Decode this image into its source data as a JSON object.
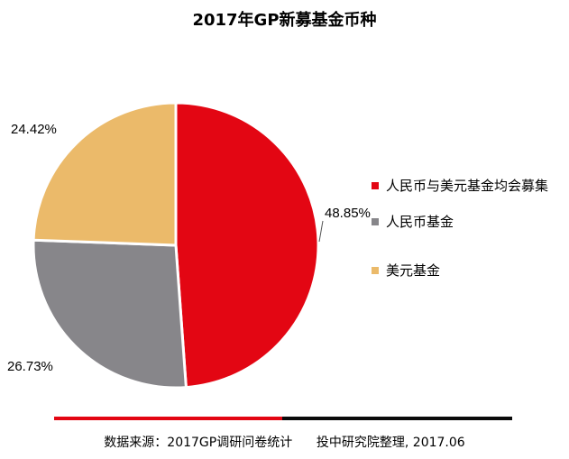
{
  "chart_data": {
    "type": "pie",
    "title": "2017年GP新募基金币种",
    "categories": [
      "人民币与美元基金均会募集",
      "人民币基金",
      "美元基金"
    ],
    "values": [
      48.85,
      26.73,
      24.42
    ],
    "value_labels": [
      "48.85%",
      "26.73%",
      "24.42%"
    ],
    "colors": [
      "#e30613",
      "#87868a",
      "#ebba6a"
    ],
    "legend_position": "right"
  },
  "footer": {
    "source": "数据来源：2017GP调研问卷统计",
    "org": "投中研究院整理, 2017.06"
  }
}
